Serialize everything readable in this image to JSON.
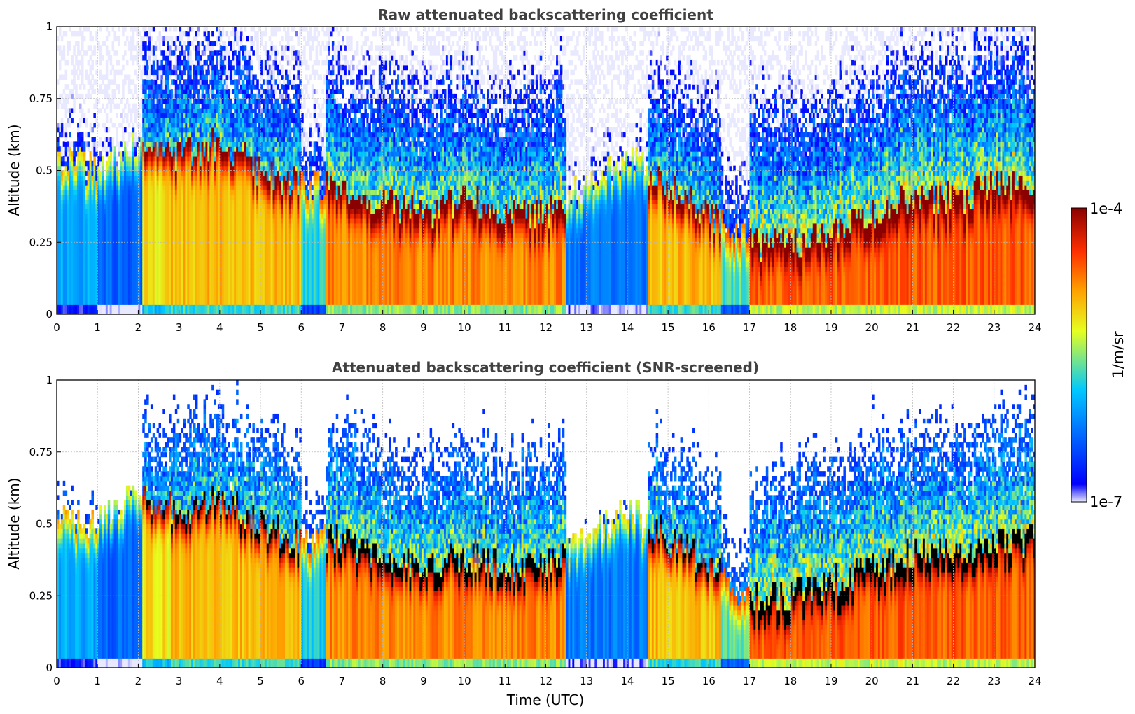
{
  "chart_data": [
    {
      "type": "heatmap",
      "title": "Raw attenuated backscattering coefficient",
      "xlabel": "",
      "ylabel": "Altitude (km)",
      "xlim": [
        0,
        24
      ],
      "ylim": [
        0,
        1
      ],
      "x_ticks": [
        "0",
        "1",
        "2",
        "3",
        "4",
        "5",
        "6",
        "7",
        "8",
        "9",
        "10",
        "11",
        "12",
        "13",
        "14",
        "15",
        "16",
        "17",
        "18",
        "19",
        "20",
        "21",
        "22",
        "23",
        "24"
      ],
      "y_ticks": [
        "0",
        "0.25",
        "0.5",
        "0.75",
        "1"
      ],
      "grid": true,
      "colorscale": "jet",
      "log_scale": true,
      "boundary_layer_top_km": [
        {
          "x": 0,
          "y": 0.55
        },
        {
          "x": 1,
          "y": 0.5
        },
        {
          "x": 2,
          "y": 0.6
        },
        {
          "x": 3,
          "y": 0.55
        },
        {
          "x": 4,
          "y": 0.6
        },
        {
          "x": 5,
          "y": 0.5
        },
        {
          "x": 6,
          "y": 0.45
        },
        {
          "x": 7,
          "y": 0.45
        },
        {
          "x": 8,
          "y": 0.38
        },
        {
          "x": 9,
          "y": 0.35
        },
        {
          "x": 10,
          "y": 0.4
        },
        {
          "x": 11,
          "y": 0.35
        },
        {
          "x": 12,
          "y": 0.35
        },
        {
          "x": 13,
          "y": 0.45
        },
        {
          "x": 14,
          "y": 0.55
        },
        {
          "x": 15,
          "y": 0.45
        },
        {
          "x": 16,
          "y": 0.35
        },
        {
          "x": 17,
          "y": 0.25
        },
        {
          "x": 18,
          "y": 0.25
        },
        {
          "x": 19,
          "y": 0.3
        },
        {
          "x": 20,
          "y": 0.35
        },
        {
          "x": 21,
          "y": 0.4
        },
        {
          "x": 22,
          "y": 0.4
        },
        {
          "x": 23,
          "y": 0.45
        },
        {
          "x": 24,
          "y": 0.45
        }
      ]
    },
    {
      "type": "heatmap",
      "title": "Attenuated backscattering coefficient (SNR-screened)",
      "xlabel": "Time (UTC)",
      "ylabel": "Altitude (km)",
      "xlim": [
        0,
        24
      ],
      "ylim": [
        0,
        1
      ],
      "x_ticks": [
        "0",
        "1",
        "2",
        "3",
        "4",
        "5",
        "6",
        "7",
        "8",
        "9",
        "10",
        "11",
        "12",
        "13",
        "14",
        "15",
        "16",
        "17",
        "18",
        "19",
        "20",
        "21",
        "22",
        "23",
        "24"
      ],
      "y_ticks": [
        "0",
        "0.25",
        "0.5",
        "0.75",
        "1"
      ],
      "grid": true,
      "colorscale": "jet",
      "log_scale": true,
      "saturated_color": "#000000"
    }
  ],
  "colorbar": {
    "min_label": "1e-7",
    "max_label": "1e-4",
    "unit_label": "1/m/sr",
    "stops": [
      "#e8e8ff",
      "#0000ff",
      "#00c8ff",
      "#e6ff20",
      "#ffa000",
      "#ff3000",
      "#8b0000"
    ]
  }
}
